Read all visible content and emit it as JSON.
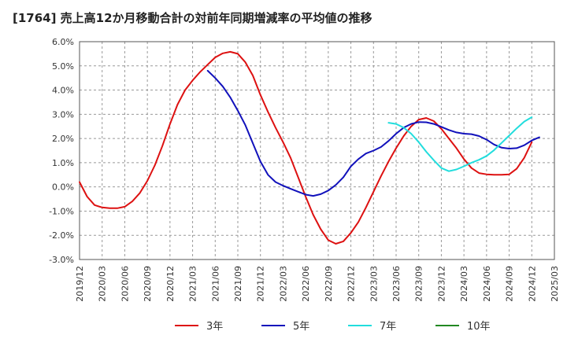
{
  "chart_data": {
    "type": "line",
    "title": "[1764]  売上高12か月移動合計の対前年同期増減率の平均値の推移",
    "xlabel": "",
    "ylabel": "",
    "ylim": [
      -3.0,
      6.0
    ],
    "y_ticks": [
      "-3.0%",
      "-2.0%",
      "-1.0%",
      "0.0%",
      "1.0%",
      "2.0%",
      "3.0%",
      "4.0%",
      "5.0%",
      "6.0%"
    ],
    "x_ticks": [
      "2019/12",
      "2020/03",
      "2020/06",
      "2020/09",
      "2020/12",
      "2021/03",
      "2021/06",
      "2021/09",
      "2021/12",
      "2022/03",
      "2022/06",
      "2022/09",
      "2022/12",
      "2023/03",
      "2023/06",
      "2023/09",
      "2023/12",
      "2024/03",
      "2024/06",
      "2024/09",
      "2024/12",
      "2025/03"
    ],
    "x_range": [
      "2019/12",
      "2025/03"
    ],
    "grid": true,
    "grid_style": "dashed",
    "legend_position": "bottom",
    "series": [
      {
        "name": "3年",
        "color": "#dd1111",
        "points": [
          [
            "2019/12",
            0.2
          ],
          [
            "2020/01",
            -0.4
          ],
          [
            "2020/02",
            -0.75
          ],
          [
            "2020/03",
            -0.85
          ],
          [
            "2020/04",
            -0.88
          ],
          [
            "2020/05",
            -0.88
          ],
          [
            "2020/06",
            -0.82
          ],
          [
            "2020/07",
            -0.6
          ],
          [
            "2020/08",
            -0.25
          ],
          [
            "2020/09",
            0.25
          ],
          [
            "2020/10",
            0.9
          ],
          [
            "2020/11",
            1.7
          ],
          [
            "2020/12",
            2.6
          ],
          [
            "2021/01",
            3.4
          ],
          [
            "2021/02",
            4.0
          ],
          [
            "2021/03",
            4.4
          ],
          [
            "2021/04",
            4.75
          ],
          [
            "2021/05",
            5.05
          ],
          [
            "2021/06",
            5.35
          ],
          [
            "2021/07",
            5.52
          ],
          [
            "2021/08",
            5.58
          ],
          [
            "2021/09",
            5.5
          ],
          [
            "2021/10",
            5.15
          ],
          [
            "2021/11",
            4.6
          ],
          [
            "2021/12",
            3.8
          ],
          [
            "2022/01",
            3.1
          ],
          [
            "2022/02",
            2.45
          ],
          [
            "2022/03",
            1.85
          ],
          [
            "2022/04",
            1.2
          ],
          [
            "2022/05",
            0.4
          ],
          [
            "2022/06",
            -0.4
          ],
          [
            "2022/07",
            -1.15
          ],
          [
            "2022/08",
            -1.75
          ],
          [
            "2022/09",
            -2.2
          ],
          [
            "2022/10",
            -2.35
          ],
          [
            "2022/11",
            -2.25
          ],
          [
            "2022/12",
            -1.9
          ],
          [
            "2023/01",
            -1.45
          ],
          [
            "2023/02",
            -0.85
          ],
          [
            "2023/03",
            -0.2
          ],
          [
            "2023/04",
            0.45
          ],
          [
            "2023/05",
            1.05
          ],
          [
            "2023/06",
            1.6
          ],
          [
            "2023/07",
            2.1
          ],
          [
            "2023/08",
            2.5
          ],
          [
            "2023/09",
            2.78
          ],
          [
            "2023/10",
            2.85
          ],
          [
            "2023/11",
            2.72
          ],
          [
            "2023/12",
            2.4
          ],
          [
            "2024/01",
            2.0
          ],
          [
            "2024/02",
            1.6
          ],
          [
            "2024/03",
            1.15
          ],
          [
            "2024/04",
            0.78
          ],
          [
            "2024/05",
            0.57
          ],
          [
            "2024/06",
            0.52
          ],
          [
            "2024/07",
            0.5
          ],
          [
            "2024/08",
            0.5
          ],
          [
            "2024/09",
            0.52
          ],
          [
            "2024/10",
            0.75
          ],
          [
            "2024/11",
            1.2
          ],
          [
            "2024/12",
            1.85
          ]
        ]
      },
      {
        "name": "5年",
        "color": "#1111bb",
        "points": [
          [
            "2021/05",
            4.8
          ],
          [
            "2021/06",
            4.5
          ],
          [
            "2021/07",
            4.15
          ],
          [
            "2021/08",
            3.7
          ],
          [
            "2021/09",
            3.15
          ],
          [
            "2021/10",
            2.55
          ],
          [
            "2021/11",
            1.8
          ],
          [
            "2021/12",
            1.05
          ],
          [
            "2022/01",
            0.5
          ],
          [
            "2022/02",
            0.2
          ],
          [
            "2022/03",
            0.05
          ],
          [
            "2022/04",
            -0.08
          ],
          [
            "2022/05",
            -0.2
          ],
          [
            "2022/06",
            -0.32
          ],
          [
            "2022/07",
            -0.37
          ],
          [
            "2022/08",
            -0.3
          ],
          [
            "2022/09",
            -0.15
          ],
          [
            "2022/10",
            0.08
          ],
          [
            "2022/11",
            0.4
          ],
          [
            "2022/12",
            0.85
          ],
          [
            "2023/01",
            1.15
          ],
          [
            "2023/02",
            1.38
          ],
          [
            "2023/03",
            1.5
          ],
          [
            "2023/04",
            1.65
          ],
          [
            "2023/05",
            1.9
          ],
          [
            "2023/06",
            2.2
          ],
          [
            "2023/07",
            2.45
          ],
          [
            "2023/08",
            2.6
          ],
          [
            "2023/09",
            2.68
          ],
          [
            "2023/10",
            2.67
          ],
          [
            "2023/11",
            2.6
          ],
          [
            "2023/12",
            2.48
          ],
          [
            "2024/01",
            2.35
          ],
          [
            "2024/02",
            2.25
          ],
          [
            "2024/03",
            2.2
          ],
          [
            "2024/04",
            2.18
          ],
          [
            "2024/05",
            2.1
          ],
          [
            "2024/06",
            1.95
          ],
          [
            "2024/07",
            1.75
          ],
          [
            "2024/08",
            1.62
          ],
          [
            "2024/09",
            1.58
          ],
          [
            "2024/10",
            1.6
          ],
          [
            "2024/11",
            1.72
          ],
          [
            "2024/12",
            1.92
          ],
          [
            "2025/01",
            2.05
          ]
        ]
      },
      {
        "name": "7年",
        "color": "#22dddd",
        "points": [
          [
            "2023/05",
            2.65
          ],
          [
            "2023/06",
            2.6
          ],
          [
            "2023/07",
            2.45
          ],
          [
            "2023/08",
            2.2
          ],
          [
            "2023/09",
            1.85
          ],
          [
            "2023/10",
            1.45
          ],
          [
            "2023/11",
            1.1
          ],
          [
            "2023/12",
            0.78
          ],
          [
            "2024/01",
            0.65
          ],
          [
            "2024/02",
            0.72
          ],
          [
            "2024/03",
            0.85
          ],
          [
            "2024/04",
            1.0
          ],
          [
            "2024/05",
            1.12
          ],
          [
            "2024/06",
            1.28
          ],
          [
            "2024/07",
            1.52
          ],
          [
            "2024/08",
            1.82
          ],
          [
            "2024/09",
            2.12
          ],
          [
            "2024/10",
            2.42
          ],
          [
            "2024/11",
            2.7
          ],
          [
            "2024/12",
            2.88
          ]
        ]
      },
      {
        "name": "10年",
        "color": "#228822",
        "points": []
      }
    ]
  }
}
